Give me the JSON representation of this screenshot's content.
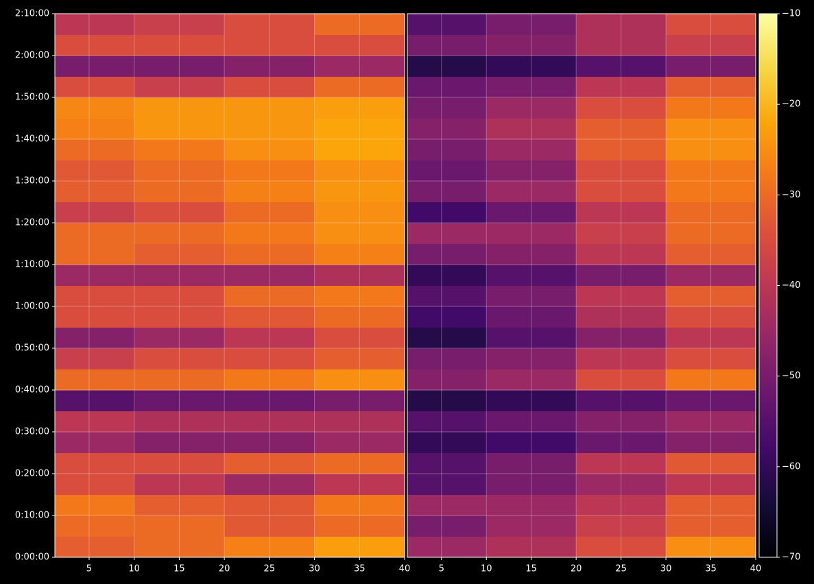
{
  "chart_data": [
    {
      "type": "heatmap",
      "colormap": "inferno",
      "x_bins": [
        1,
        10,
        20,
        30,
        40
      ],
      "y_bins": [
        0,
        300,
        600,
        900,
        1200,
        1500,
        1800,
        2100,
        2400,
        2700,
        3000,
        3300,
        3600,
        3900,
        4200,
        4500,
        4800,
        5100,
        5400,
        5700,
        6000,
        6300,
        6600,
        6900,
        7200,
        7500,
        7800
      ],
      "values": [
        [
          -32,
          -30,
          -27,
          -23
        ],
        [
          -30,
          -30,
          -33,
          -30
        ],
        [
          -28,
          -32,
          -33,
          -28
        ],
        [
          -35,
          -40,
          -45,
          -40
        ],
        [
          -35,
          -35,
          -32,
          -30
        ],
        [
          -45,
          -48,
          -48,
          -45
        ],
        [
          -40,
          -42,
          -42,
          -42
        ],
        [
          -55,
          -52,
          -52,
          -50
        ],
        [
          -30,
          -30,
          -28,
          -25
        ],
        [
          -38,
          -35,
          -35,
          -32
        ],
        [
          -48,
          -45,
          -40,
          -35
        ],
        [
          -35,
          -35,
          -33,
          -30
        ],
        [
          -35,
          -35,
          -30,
          -28
        ],
        [
          -45,
          -45,
          -45,
          -42
        ],
        [
          -30,
          -32,
          -30,
          -27
        ],
        [
          -30,
          -30,
          -28,
          -25
        ],
        [
          -38,
          -35,
          -30,
          -25
        ],
        [
          -32,
          -30,
          -27,
          -24
        ],
        [
          -33,
          -30,
          -28,
          -25
        ],
        [
          -30,
          -28,
          -25,
          -22
        ],
        [
          -27,
          -24,
          -24,
          -22
        ],
        [
          -26,
          -24,
          -24,
          -23
        ],
        [
          -35,
          -38,
          -35,
          -30
        ],
        [
          -50,
          -50,
          -48,
          -45
        ],
        [
          -35,
          -35,
          -35,
          -35
        ],
        [
          -40,
          -38,
          -35,
          -30
        ]
      ],
      "xlim": [
        1.2,
        40
      ],
      "xticks": [
        5,
        10,
        15,
        20,
        25,
        30,
        35,
        40
      ],
      "ylim": [
        0,
        7800
      ],
      "yticks": [
        {
          "value": 0,
          "label": "0:00:00"
        },
        {
          "value": 600,
          "label": "0:10:00"
        },
        {
          "value": 1200,
          "label": "0:20:00"
        },
        {
          "value": 1800,
          "label": "0:30:00"
        },
        {
          "value": 2400,
          "label": "0:40:00"
        },
        {
          "value": 3000,
          "label": "0:50:00"
        },
        {
          "value": 3600,
          "label": "1:00:00"
        },
        {
          "value": 4200,
          "label": "1:10:00"
        },
        {
          "value": 4800,
          "label": "1:20:00"
        },
        {
          "value": 5400,
          "label": "1:30:00"
        },
        {
          "value": 6000,
          "label": "1:40:00"
        },
        {
          "value": 6600,
          "label": "1:50:00"
        },
        {
          "value": 7200,
          "label": "2:00:00"
        },
        {
          "value": 7800,
          "label": "2:10:00"
        }
      ],
      "grid": true
    },
    {
      "type": "heatmap",
      "colormap": "inferno",
      "x_bins": [
        1,
        10,
        20,
        30,
        40
      ],
      "y_bins": [
        0,
        300,
        600,
        900,
        1200,
        1500,
        1800,
        2100,
        2400,
        2700,
        3000,
        3300,
        3600,
        3900,
        4200,
        4500,
        4800,
        5100,
        5400,
        5700,
        6000,
        6300,
        6600,
        6900,
        7200,
        7500,
        7800
      ],
      "values": [
        [
          -45,
          -42,
          -35,
          -25
        ],
        [
          -50,
          -45,
          -38,
          -32
        ],
        [
          -45,
          -45,
          -40,
          -32
        ],
        [
          -55,
          -50,
          -45,
          -40
        ],
        [
          -55,
          -50,
          -40,
          -33
        ],
        [
          -60,
          -58,
          -52,
          -48
        ],
        [
          -55,
          -52,
          -48,
          -45
        ],
        [
          -62,
          -60,
          -55,
          -52
        ],
        [
          -48,
          -45,
          -35,
          -28
        ],
        [
          -50,
          -48,
          -40,
          -35
        ],
        [
          -62,
          -55,
          -48,
          -40
        ],
        [
          -58,
          -52,
          -42,
          -35
        ],
        [
          -55,
          -50,
          -40,
          -32
        ],
        [
          -60,
          -55,
          -50,
          -45
        ],
        [
          -50,
          -48,
          -40,
          -32
        ],
        [
          -45,
          -45,
          -38,
          -30
        ],
        [
          -58,
          -52,
          -40,
          -30
        ],
        [
          -50,
          -45,
          -35,
          -28
        ],
        [
          -52,
          -48,
          -35,
          -28
        ],
        [
          -50,
          -45,
          -32,
          -25
        ],
        [
          -48,
          -42,
          -32,
          -25
        ],
        [
          -50,
          -45,
          -35,
          -28
        ],
        [
          -52,
          -50,
          -40,
          -32
        ],
        [
          -62,
          -60,
          -55,
          -50
        ],
        [
          -50,
          -48,
          -42,
          -38
        ],
        [
          -55,
          -50,
          -42,
          -35
        ]
      ],
      "xlim": [
        1.2,
        40
      ],
      "xticks": [
        5,
        10,
        15,
        20,
        25,
        30,
        35,
        40
      ],
      "ylim": [
        0,
        7800
      ],
      "grid": true
    }
  ],
  "colorbar": {
    "colormap": "inferno",
    "lim": [
      -70,
      -10
    ],
    "ticks": [
      {
        "value": -70,
        "label": "−70"
      },
      {
        "value": -60,
        "label": "−60"
      },
      {
        "value": -50,
        "label": "−50"
      },
      {
        "value": -40,
        "label": "−40"
      },
      {
        "value": -30,
        "label": "−30"
      },
      {
        "value": -20,
        "label": "−20"
      },
      {
        "value": -10,
        "label": "−10"
      }
    ]
  }
}
